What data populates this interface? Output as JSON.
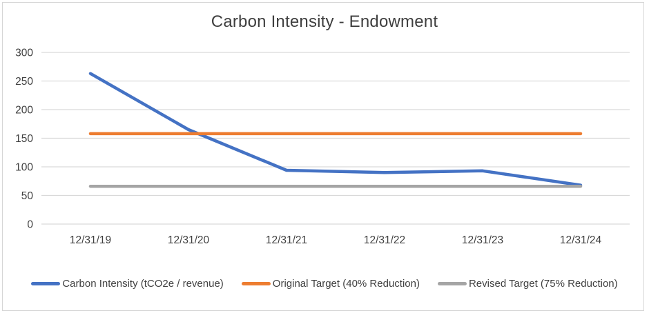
{
  "chart_data": {
    "type": "line",
    "title": "Carbon Intensity - Endowment",
    "categories": [
      "12/31/19",
      "12/31/20",
      "12/31/21",
      "12/31/22",
      "12/31/23",
      "12/31/24"
    ],
    "series": [
      {
        "name": "Carbon Intensity (tCO2e / revenue)",
        "color": "#4472C4",
        "values": [
          263,
          165,
          94,
          90,
          93,
          68
        ]
      },
      {
        "name": "Original Target (40% Reduction)",
        "color": "#ED7D31",
        "values": [
          158,
          158,
          158,
          158,
          158,
          158
        ]
      },
      {
        "name": "Revised Target (75% Reduction)",
        "color": "#A5A5A5",
        "values": [
          66,
          66,
          66,
          66,
          66,
          66
        ]
      }
    ],
    "xlabel": "",
    "ylabel": "",
    "ylim": [
      0,
      300
    ],
    "ytick_step": 50,
    "grid": "horizontal",
    "legend_position": "bottom",
    "gridline_color": "#d9d9d9",
    "axis_text_color": "#404040"
  }
}
